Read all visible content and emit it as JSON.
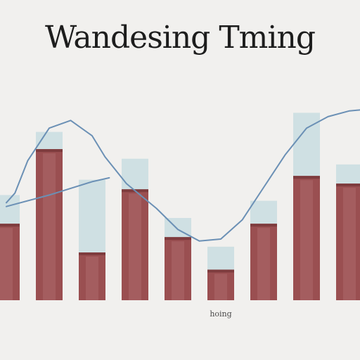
{
  "chart_data": {
    "type": "bar",
    "title": "Wandesing Tming",
    "xlabel": "",
    "ylabel": "",
    "ylim": [
      0,
      100
    ],
    "grid": false,
    "categories": [
      "",
      "",
      "",
      "",
      "",
      "",
      "",
      "",
      ""
    ],
    "tick_labels": [
      "",
      "",
      "",
      "",
      "",
      "hoing",
      "",
      "",
      ""
    ],
    "series": [
      {
        "values": [
          40,
          79,
          25,
          58,
          33,
          16,
          40,
          65,
          61
        ]
      },
      {
        "values": [
          55,
          88,
          63,
          74,
          43,
          28,
          52,
          98,
          71
        ]
      }
    ],
    "line": [
      [
        0.0,
        51
      ],
      [
        0.2,
        56
      ],
      [
        0.5,
        73
      ],
      [
        1.0,
        90
      ],
      [
        1.5,
        94
      ],
      [
        2.0,
        86
      ],
      [
        2.3,
        75
      ],
      [
        2.8,
        61
      ],
      [
        3.5,
        48
      ],
      [
        4.0,
        37
      ],
      [
        4.5,
        31
      ],
      [
        5.0,
        32
      ],
      [
        5.5,
        42
      ],
      [
        6.0,
        59
      ],
      [
        6.5,
        76
      ],
      [
        7.0,
        90
      ],
      [
        7.5,
        96
      ],
      [
        8.0,
        99
      ],
      [
        8.5,
        100
      ]
    ],
    "line2": [
      [
        0.0,
        49
      ],
      [
        1.0,
        55
      ],
      [
        2.0,
        62
      ],
      [
        2.4,
        64
      ]
    ],
    "colors": {
      "bar_fill": "#9a4f51",
      "bar_top": "#7e3c3e",
      "bar_highlight": "#b8787a",
      "cap_fill": "#cfe0e3",
      "line": "#6b90b5"
    }
  }
}
